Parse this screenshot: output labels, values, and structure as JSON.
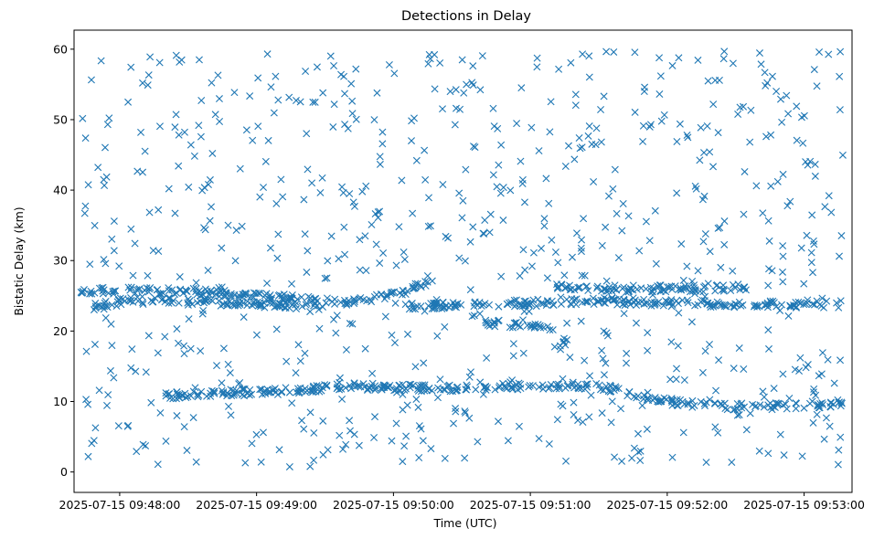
{
  "chart_data": {
    "type": "scatter",
    "title": "Detections in Delay",
    "xlabel": "Time (UTC)",
    "ylabel": "Bistatic Delay (km)",
    "marker": "x",
    "marker_color": "#1f77b4",
    "x_unit": "seconds after 2025-07-15 09:48:00 UTC",
    "xlim": [
      -20,
      321
    ],
    "ylim": [
      -2.9,
      62.7
    ],
    "x_ticks": [
      {
        "value": 0,
        "label": "2025-07-15 09:48:00"
      },
      {
        "value": 60,
        "label": "2025-07-15 09:49:00"
      },
      {
        "value": 120,
        "label": "2025-07-15 09:50:00"
      },
      {
        "value": 180,
        "label": "2025-07-15 09:51:00"
      },
      {
        "value": 240,
        "label": "2025-07-15 09:52:00"
      },
      {
        "value": 300,
        "label": "2025-07-15 09:53:00"
      }
    ],
    "y_ticks": [
      0,
      10,
      20,
      30,
      40,
      50,
      60
    ],
    "x_range": [
      -17,
      318
    ],
    "delay_range": [
      0.5,
      59.8
    ],
    "clutter_count": 760,
    "tracks": [
      {
        "name": "track-a",
        "x": [
          -17,
          0,
          30,
          60,
          90,
          110
        ],
        "y": [
          25.5,
          25.8,
          25.6,
          25.0,
          24.3,
          24.0
        ]
      },
      {
        "name": "track-a2",
        "x": [
          110,
          124,
          133,
          138
        ],
        "y": [
          24.5,
          25.5,
          26.8,
          27.2
        ]
      },
      {
        "name": "track-b",
        "x": [
          120,
          145,
          180,
          210,
          240,
          270,
          295,
          318
        ],
        "y": [
          23.6,
          23.6,
          24.0,
          24.3,
          24.0,
          23.8,
          23.8,
          23.8
        ]
      },
      {
        "name": "track-c",
        "x": [
          160,
          180,
          190
        ],
        "y": [
          21.2,
          20.8,
          20.5
        ]
      },
      {
        "name": "track-d",
        "x": [
          190,
          220,
          240,
          260,
          275
        ],
        "y": [
          26.3,
          26.0,
          26.0,
          26.1,
          26.2
        ]
      },
      {
        "name": "track-e",
        "x": [
          20,
          40,
          60,
          80,
          100,
          140,
          180,
          210,
          240,
          260,
          280,
          300,
          318
        ],
        "y": [
          10.8,
          11.2,
          11.3,
          11.6,
          12.2,
          11.8,
          12.2,
          12.2,
          10.0,
          9.4,
          9.2,
          9.5,
          9.8
        ]
      },
      {
        "name": "track-f",
        "x": [
          -12,
          5,
          25,
          50,
          65,
          80,
          95
        ],
        "y": [
          23.5,
          24.5,
          24.2,
          24.0,
          23.8,
          23.6,
          23.5
        ]
      }
    ]
  }
}
